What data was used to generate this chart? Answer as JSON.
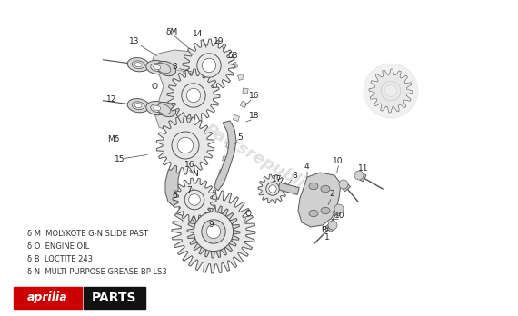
{
  "bg_color": "#ffffff",
  "line_color": "#555555",
  "legend_items": [
    [
      "δ M",
      "MOLYKOTE G-N SLIDE PAST"
    ],
    [
      "δ O",
      "ENGINE OIL"
    ],
    [
      "δ B",
      "LOCTITE 243"
    ],
    [
      "δ N",
      "MULTI PURPOSE GREASE BP LS3"
    ]
  ],
  "watermark": "Partsrepublik",
  "aprilia_bg": "#cc0000",
  "parts_bg": "#111111",
  "lw": 0.7,
  "labels": [
    [
      189,
      35,
      "δM"
    ],
    [
      148,
      46,
      "13"
    ],
    [
      192,
      73,
      "3"
    ],
    [
      218,
      38,
      "14"
    ],
    [
      241,
      46,
      "19"
    ],
    [
      256,
      62,
      "δB"
    ],
    [
      280,
      105,
      "16"
    ],
    [
      280,
      128,
      "18"
    ],
    [
      264,
      152,
      "5"
    ],
    [
      209,
      182,
      "16"
    ],
    [
      215,
      192,
      "N"
    ],
    [
      208,
      210,
      "7"
    ],
    [
      192,
      215,
      "6"
    ],
    [
      132,
      175,
      "15"
    ],
    [
      125,
      153,
      "Mδ"
    ],
    [
      123,
      110,
      "12"
    ],
    [
      170,
      95,
      "O"
    ],
    [
      232,
      247,
      "9"
    ],
    [
      273,
      236,
      "O"
    ],
    [
      305,
      197,
      "17"
    ],
    [
      324,
      193,
      "8"
    ],
    [
      337,
      183,
      "4"
    ],
    [
      372,
      178,
      "10"
    ],
    [
      400,
      186,
      "11"
    ],
    [
      365,
      214,
      "2"
    ],
    [
      374,
      238,
      "10"
    ],
    [
      356,
      253,
      "B"
    ],
    [
      360,
      262,
      "1"
    ]
  ]
}
